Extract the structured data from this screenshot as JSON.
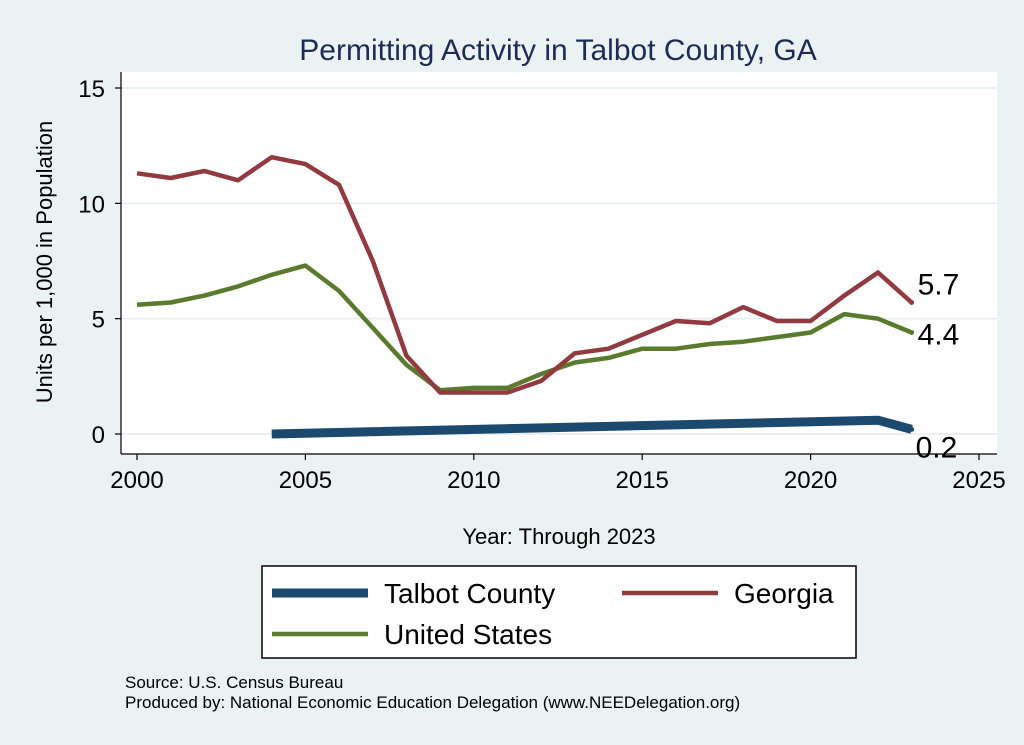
{
  "chart_data": {
    "type": "line",
    "title": "Permitting Activity in Talbot County, GA",
    "xlabel": "Year: Through 2023",
    "ylabel": "Units per 1,000 in Population",
    "xlim": [
      2000,
      2025
    ],
    "ylim": [
      0,
      15
    ],
    "xticks": [
      2000,
      2005,
      2010,
      2015,
      2020,
      2025
    ],
    "yticks": [
      0,
      5,
      10,
      15
    ],
    "grid": true,
    "legend_position": "bottom",
    "series": [
      {
        "name": "Talbot County",
        "color": "#1b4a6e",
        "x": [
          2004,
          2022,
          2023
        ],
        "values": [
          0.0,
          0.6,
          0.2
        ],
        "end_label": "0.2"
      },
      {
        "name": "Georgia",
        "color": "#913a40",
        "x": [
          2000,
          2001,
          2002,
          2003,
          2004,
          2005,
          2006,
          2007,
          2008,
          2009,
          2010,
          2011,
          2012,
          2013,
          2014,
          2015,
          2016,
          2017,
          2018,
          2019,
          2020,
          2021,
          2022,
          2023
        ],
        "values": [
          11.3,
          11.1,
          11.4,
          11.0,
          12.0,
          11.7,
          10.8,
          7.5,
          3.4,
          1.8,
          1.8,
          1.8,
          2.3,
          3.5,
          3.7,
          4.3,
          4.9,
          4.8,
          5.5,
          4.9,
          4.9,
          6.0,
          7.0,
          5.7
        ],
        "end_label": "5.7"
      },
      {
        "name": "United States",
        "color": "#5a7a2e",
        "x": [
          2000,
          2001,
          2002,
          2003,
          2004,
          2005,
          2006,
          2007,
          2008,
          2009,
          2010,
          2011,
          2012,
          2013,
          2014,
          2015,
          2016,
          2017,
          2018,
          2019,
          2020,
          2021,
          2022,
          2023
        ],
        "values": [
          5.6,
          5.7,
          6.0,
          6.4,
          6.9,
          7.3,
          6.2,
          4.6,
          3.0,
          1.9,
          2.0,
          2.0,
          2.6,
          3.1,
          3.3,
          3.7,
          3.7,
          3.9,
          4.0,
          4.2,
          4.4,
          5.2,
          5.0,
          4.4
        ],
        "end_label": "4.4"
      }
    ],
    "legend_order": [
      "Talbot County",
      "Georgia",
      "United States"
    ]
  },
  "footer": {
    "source": "Source: U.S. Census Bureau",
    "producer": "Produced by: National Economic Education Delegation (www.NEEDelegation.org)"
  }
}
